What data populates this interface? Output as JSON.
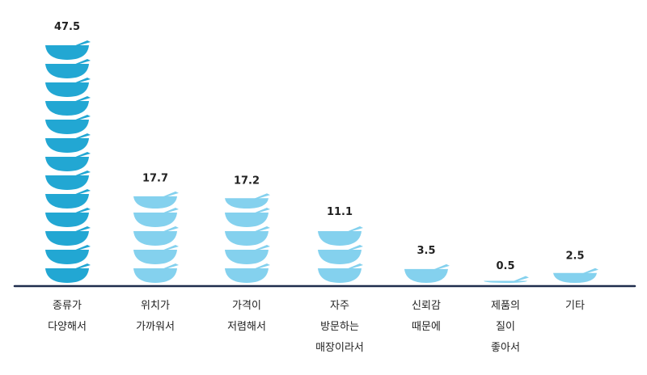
{
  "chart_data": {
    "type": "bar",
    "title": "",
    "xlabel": "",
    "ylabel": "",
    "categories": [
      [
        "종류가",
        "다양해서"
      ],
      [
        "위치가",
        "가까워서"
      ],
      [
        "가격이",
        "저렴해서"
      ],
      [
        "자주",
        "방문하는",
        "매장이라서"
      ],
      [
        "신뢰감",
        "때문에"
      ],
      [
        "제품의",
        "질이",
        "좋아서"
      ],
      [
        "기타"
      ]
    ],
    "values": [
      47.5,
      17.7,
      17.2,
      11.1,
      3.5,
      0.5,
      2.5
    ],
    "value_labels": [
      "47.5",
      "17.7",
      "17.2",
      "11.1",
      "3.5",
      "0.5",
      "2.5"
    ],
    "ylim": [
      0,
      50
    ],
    "grid": false,
    "colors": {
      "first_bar": "#22a7d3",
      "other_bars": "#84d1ee",
      "axis": "#1f2d4d",
      "text": "#222222"
    },
    "icon": "bowl-icon"
  }
}
